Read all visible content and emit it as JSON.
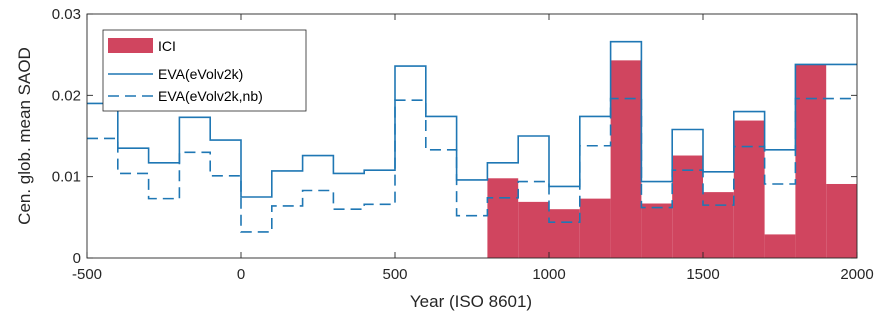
{
  "chart_data": {
    "type": "bar",
    "xlabel": "Year (ISO 8601)",
    "ylabel": "Cen. glob. mean SAOD",
    "xlim": [
      -500,
      2000
    ],
    "ylim": [
      0,
      0.03
    ],
    "xticks": [
      -500,
      0,
      500,
      1000,
      1500,
      2000
    ],
    "xtick_labels": [
      "-500",
      "0",
      "500",
      "1000",
      "1500",
      "2000"
    ],
    "yticks": [
      0,
      0.01,
      0.02,
      0.03
    ],
    "ytick_labels": [
      "0",
      "0.01",
      "0.02",
      "0.03"
    ],
    "bin_width": 100,
    "legend_position": "top-left",
    "bars": {
      "name": "ICI",
      "color": "#d0455f",
      "x_start": [
        800,
        900,
        1000,
        1100,
        1200,
        1300,
        1400,
        1500,
        1600,
        1700,
        1800,
        1900
      ],
      "values": [
        0.0098,
        0.0069,
        0.006,
        0.0073,
        0.0243,
        0.0067,
        0.0126,
        0.0081,
        0.0169,
        0.0029,
        0.0238,
        0.0091
      ]
    },
    "series": [
      {
        "name": "EVA(eVolv2k)",
        "style": "solid",
        "color": "#1f77b4",
        "x_start": [
          -500,
          -400,
          -300,
          -200,
          -100,
          0,
          100,
          200,
          300,
          400,
          500,
          600,
          700,
          800,
          900,
          1000,
          1100,
          1200,
          1300,
          1400,
          1500,
          1600,
          1700,
          1800,
          1900
        ],
        "values": [
          0.019,
          0.0135,
          0.0117,
          0.0173,
          0.0145,
          0.0075,
          0.0107,
          0.0126,
          0.0104,
          0.0108,
          0.0236,
          0.0174,
          0.0096,
          0.0117,
          0.015,
          0.0088,
          0.0174,
          0.0266,
          0.0094,
          0.0158,
          0.0106,
          0.018,
          0.0133,
          0.0238,
          0.0238
        ]
      },
      {
        "name": "EVA(eVolv2k,nb)",
        "style": "dashed",
        "color": "#1f77b4",
        "x_start": [
          -500,
          -400,
          -300,
          -200,
          -100,
          0,
          100,
          200,
          300,
          400,
          500,
          600,
          700,
          800,
          900,
          1000,
          1100,
          1200,
          1300,
          1400,
          1500,
          1600,
          1700,
          1800,
          1900
        ],
        "values": [
          0.0147,
          0.0104,
          0.0073,
          0.013,
          0.0101,
          0.0032,
          0.0064,
          0.0083,
          0.006,
          0.0066,
          0.0194,
          0.0133,
          0.0052,
          0.0074,
          0.0094,
          0.0044,
          0.0138,
          0.0196,
          0.0062,
          0.0108,
          0.0065,
          0.0137,
          0.0091,
          0.0196,
          0.0196
        ]
      }
    ]
  }
}
